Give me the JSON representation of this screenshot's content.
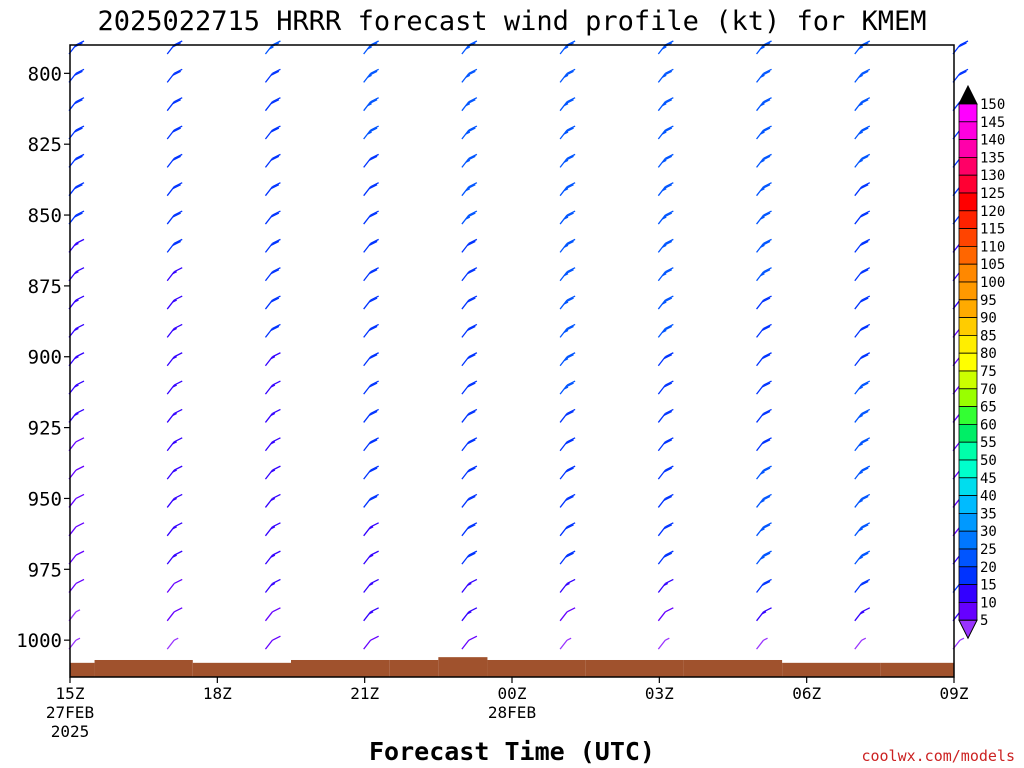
{
  "chart_data": {
    "type": "wind-barb-profile",
    "title": "2025022715 HRRR forecast wind profile (kt) for KMEM",
    "xlabel": "Forecast Time (UTC)",
    "ylabel": "",
    "watermark": "coolwx.com/models",
    "y_ticks": [
      800,
      825,
      850,
      875,
      900,
      925,
      950,
      975,
      1000
    ],
    "ylim": [
      1000,
      790
    ],
    "x_ticks": [
      {
        "hour": 0,
        "label": "15Z",
        "sub1": "27FEB",
        "sub2": "2025"
      },
      {
        "hour": 3,
        "label": "18Z",
        "sub1": "",
        "sub2": ""
      },
      {
        "hour": 6,
        "label": "21Z",
        "sub1": "",
        "sub2": ""
      },
      {
        "hour": 9,
        "label": "00Z",
        "sub1": "28FEB",
        "sub2": ""
      },
      {
        "hour": 12,
        "label": "03Z",
        "sub1": "",
        "sub2": ""
      },
      {
        "hour": 15,
        "label": "06Z",
        "sub1": "",
        "sub2": ""
      },
      {
        "hour": 18,
        "label": "09Z",
        "sub1": "",
        "sub2": ""
      }
    ],
    "xlim_hours": [
      0,
      18
    ],
    "barb_columns_hours": [
      0,
      2,
      4,
      6,
      8,
      10,
      12,
      14,
      16,
      18
    ],
    "barb_levels": [
      790,
      800,
      810,
      820,
      830,
      840,
      850,
      860,
      870,
      880,
      890,
      900,
      910,
      920,
      930,
      940,
      950,
      960,
      970,
      980,
      990,
      1000
    ],
    "wind_speed_kt": [
      [
        24,
        24,
        22,
        22,
        21,
        20,
        20,
        19,
        18,
        18,
        17,
        16,
        16,
        15,
        14,
        14,
        13,
        12,
        11,
        10,
        9,
        8
      ],
      [
        22,
        22,
        22,
        21,
        21,
        20,
        20,
        20,
        19,
        19,
        18,
        18,
        17,
        17,
        17,
        16,
        16,
        15,
        15,
        12,
        10,
        8
      ],
      [
        25,
        24,
        23,
        23,
        22,
        22,
        21,
        21,
        20,
        20,
        20,
        19,
        19,
        19,
        18,
        18,
        17,
        17,
        16,
        15,
        12,
        10
      ],
      [
        26,
        26,
        25,
        25,
        24,
        24,
        24,
        23,
        23,
        22,
        22,
        22,
        21,
        21,
        20,
        20,
        20,
        19,
        18,
        17,
        15,
        11
      ],
      [
        27,
        27,
        26,
        26,
        26,
        25,
        25,
        24,
        24,
        24,
        23,
        23,
        22,
        22,
        22,
        21,
        21,
        20,
        20,
        18,
        15,
        10
      ],
      [
        28,
        28,
        28,
        28,
        27,
        27,
        27,
        26,
        26,
        26,
        25,
        25,
        25,
        24,
        24,
        23,
        23,
        22,
        21,
        18,
        14,
        9
      ],
      [
        27,
        27,
        27,
        26,
        26,
        26,
        26,
        25,
        25,
        25,
        25,
        24,
        24,
        24,
        23,
        23,
        23,
        22,
        20,
        17,
        13,
        8
      ],
      [
        27,
        27,
        26,
        26,
        26,
        25,
        25,
        25,
        25,
        24,
        24,
        24,
        24,
        24,
        24,
        25,
        26,
        27,
        26,
        22,
        15,
        8
      ],
      [
        26,
        26,
        25,
        25,
        25,
        24,
        24,
        24,
        24,
        24,
        24,
        24,
        25,
        26,
        27,
        28,
        29,
        29,
        27,
        22,
        15,
        8
      ],
      [
        24,
        23,
        23,
        22,
        22,
        21,
        20,
        19,
        18,
        16,
        14,
        12,
        11,
        10,
        10,
        10,
        11,
        14,
        18,
        20,
        15,
        8
      ]
    ],
    "surface_pressure": [
      {
        "from": 0.0,
        "to": 0.5,
        "p": 1008
      },
      {
        "from": 0.5,
        "to": 2.5,
        "p": 1007
      },
      {
        "from": 2.5,
        "to": 4.5,
        "p": 1008
      },
      {
        "from": 4.5,
        "to": 6.5,
        "p": 1007
      },
      {
        "from": 6.5,
        "to": 7.5,
        "p": 1007
      },
      {
        "from": 7.5,
        "to": 8.5,
        "p": 1006
      },
      {
        "from": 8.5,
        "to": 10.5,
        "p": 1007
      },
      {
        "from": 10.5,
        "to": 12.5,
        "p": 1007
      },
      {
        "from": 12.5,
        "to": 14.5,
        "p": 1007
      },
      {
        "from": 14.5,
        "to": 16.5,
        "p": 1008
      },
      {
        "from": 16.5,
        "to": 18.0,
        "p": 1008
      }
    ],
    "ground_color": "#a0522d",
    "colorbar": {
      "labels": [
        150,
        145,
        140,
        135,
        130,
        125,
        120,
        115,
        110,
        105,
        100,
        95,
        90,
        85,
        80,
        75,
        70,
        65,
        60,
        55,
        50,
        45,
        40,
        35,
        30,
        25,
        20,
        15,
        10,
        5
      ],
      "colors": [
        "#ff00ff",
        "#ff00e0",
        "#ff00aa",
        "#ff0066",
        "#ff0033",
        "#ff0000",
        "#ff2200",
        "#ff4400",
        "#ff6600",
        "#ff8800",
        "#ff9900",
        "#ffaa00",
        "#ffcc00",
        "#ffee00",
        "#ffff00",
        "#ccff00",
        "#99ff00",
        "#33ff33",
        "#00ee66",
        "#00ffaa",
        "#00ffcc",
        "#00ddee",
        "#00bbff",
        "#0099ff",
        "#0077ff",
        "#0055ff",
        "#0033ff",
        "#3300ff",
        "#6600ff",
        "#9933ff"
      ],
      "top_triangle_color": "#000000",
      "bottom_triangle_color": "#9933ff"
    }
  }
}
